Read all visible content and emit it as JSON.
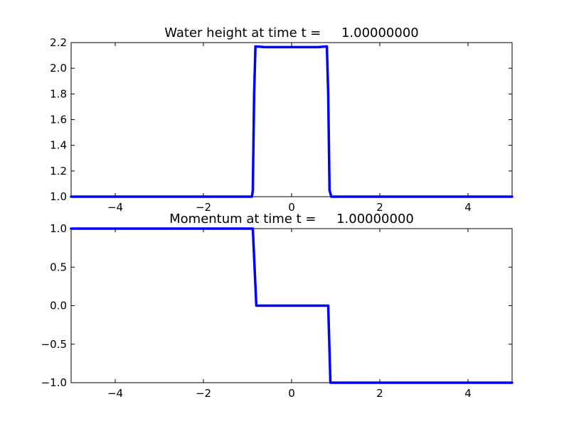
{
  "chart_data": [
    {
      "type": "line",
      "title": "Water height at time t =     1.00000000",
      "xlim": [
        -5,
        5
      ],
      "ylim": [
        1.0,
        2.2
      ],
      "xticks": [
        -4,
        -2,
        0,
        2,
        4
      ],
      "xtick_labels": [
        "−4",
        "−2",
        "0",
        "2",
        "4"
      ],
      "yticks": [
        1.0,
        1.2,
        1.4,
        1.6,
        1.8,
        2.0,
        2.2
      ],
      "ytick_labels": [
        "1.0",
        "1.2",
        "1.4",
        "1.6",
        "1.8",
        "2.0",
        "2.2"
      ],
      "color": "#0000ff",
      "series": [
        {
          "x": [
            -5,
            -0.9,
            -0.88,
            -0.85,
            -0.82,
            -0.6,
            0,
            0.6,
            0.8,
            0.83,
            0.86,
            0.9,
            5
          ],
          "y": [
            1.0,
            1.0,
            1.05,
            1.8,
            2.17,
            2.165,
            2.165,
            2.165,
            2.17,
            1.8,
            1.05,
            1.0,
            1.0
          ]
        }
      ]
    },
    {
      "type": "line",
      "title": "Momentum at time t =     1.00000000",
      "xlim": [
        -5,
        5
      ],
      "ylim": [
        -1.0,
        1.0
      ],
      "xticks": [
        -4,
        -2,
        0,
        2,
        4
      ],
      "xtick_labels": [
        "−4",
        "−2",
        "0",
        "2",
        "4"
      ],
      "yticks": [
        -1.0,
        -0.5,
        0.0,
        0.5,
        1.0
      ],
      "ytick_labels": [
        "−1.0",
        "−0.5",
        "0.0",
        "0.5",
        "1.0"
      ],
      "color": "#0000ff",
      "series": [
        {
          "x": [
            -5,
            -0.88,
            -0.8,
            -0.75,
            0,
            0.8,
            0.83,
            0.88,
            5
          ],
          "y": [
            1.0,
            1.0,
            0.0,
            0.0,
            0.0,
            0.0,
            0.0,
            -1.0,
            -1.0
          ]
        }
      ]
    }
  ]
}
